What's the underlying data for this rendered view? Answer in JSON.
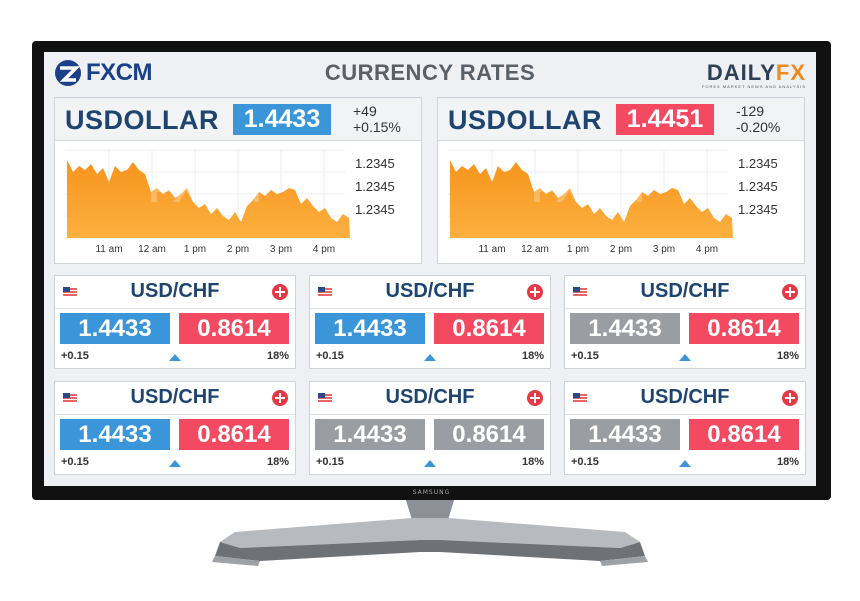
{
  "header": {
    "brand_left": "FXCM",
    "title": "CURRENCY RATES",
    "brand_right_main": "DAILY",
    "brand_right_accent": "FX",
    "brand_right_tagline": "FOREX MARKET NEWS AND ANALYSIS"
  },
  "tv_brand": "SAMSUNG",
  "colors": {
    "blue": "#3a96d9",
    "red": "#f34a61",
    "grey": "#9a9da1",
    "orange": "#f7941d",
    "navy": "#1e4470"
  },
  "big_panels": [
    {
      "name": "USDOLLAR",
      "rate": "1.4433",
      "rate_color": "blue",
      "change": "+49",
      "change_pct": "+0.15%",
      "chart": {
        "y_labels": [
          "1.2345",
          "1.2345",
          "1.2345"
        ],
        "x_labels": [
          "11 am",
          "12 am",
          "1 pm",
          "2 pm",
          "3 pm",
          "4 pm"
        ],
        "watermark": "FXCM"
      }
    },
    {
      "name": "USDOLLAR",
      "rate": "1.4451",
      "rate_color": "red",
      "change": "-129",
      "change_pct": "-0.20%",
      "chart": {
        "y_labels": [
          "1.2345",
          "1.2345",
          "1.2345"
        ],
        "x_labels": [
          "11 am",
          "12 am",
          "1 pm",
          "2 pm",
          "3 pm",
          "4 pm"
        ],
        "watermark": "FXCM"
      }
    }
  ],
  "cards": [
    {
      "pair": "USD/CHF",
      "flag": "us-flag-icon",
      "bid": "1.4433",
      "ask": "0.8614",
      "bid_color": "blue",
      "ask_color": "red",
      "change": "+0.15",
      "pct": "18%"
    },
    {
      "pair": "USD/CHF",
      "flag": "us-flag-icon",
      "bid": "1.4433",
      "ask": "0.8614",
      "bid_color": "blue",
      "ask_color": "red",
      "change": "+0.15",
      "pct": "18%"
    },
    {
      "pair": "USD/CHF",
      "flag": "us-flag-icon",
      "bid": "1.4433",
      "ask": "0.8614",
      "bid_color": "grey",
      "ask_color": "red",
      "change": "+0.15",
      "pct": "18%"
    },
    {
      "pair": "USD/CHF",
      "flag": "us-flag-icon",
      "bid": "1.4433",
      "ask": "0.8614",
      "bid_color": "blue",
      "ask_color": "red",
      "change": "+0.15",
      "pct": "18%"
    },
    {
      "pair": "USD/CHF",
      "flag": "us-flag-icon",
      "bid": "1.4433",
      "ask": "0.8614",
      "bid_color": "grey",
      "ask_color": "grey",
      "change": "+0.15",
      "pct": "18%"
    },
    {
      "pair": "USD/CHF",
      "flag": "us-flag-icon",
      "bid": "1.4433",
      "ask": "0.8614",
      "bid_color": "grey",
      "ask_color": "red",
      "change": "+0.15",
      "pct": "18%"
    }
  ]
}
